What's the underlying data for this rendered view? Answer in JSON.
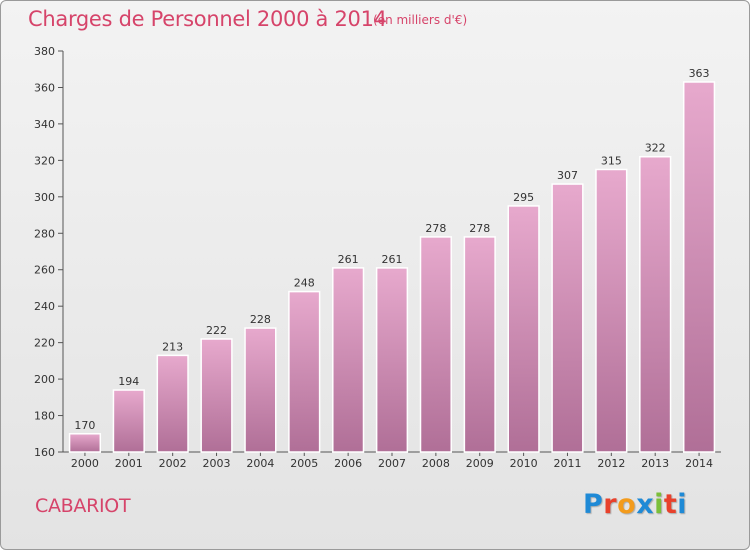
{
  "header": {
    "title": "Charges de Personnel 2000 à 2014",
    "subtitle": "(en milliers d'€)"
  },
  "footer": {
    "place": "CABARIOT",
    "brand": "Proxiti"
  },
  "colors": {
    "accent_text": "#d6446a",
    "bar_top": "#e7a9cd",
    "bar_bottom": "#b06f97",
    "brand_letters": [
      "#1f8ad6",
      "#e8412c",
      "#f39b1c",
      "#1f8ad6",
      "#7bbf3a",
      "#e8412c",
      "#1f8ad6"
    ]
  },
  "chart_data": {
    "type": "bar",
    "categories": [
      "2000",
      "2001",
      "2002",
      "2003",
      "2004",
      "2005",
      "2006",
      "2007",
      "2008",
      "2009",
      "2010",
      "2011",
      "2012",
      "2013",
      "2014"
    ],
    "values": [
      170,
      194,
      213,
      222,
      228,
      248,
      261,
      261,
      278,
      278,
      295,
      307,
      315,
      322,
      363
    ],
    "ylim": [
      160,
      380
    ],
    "yticks": [
      160,
      180,
      200,
      220,
      240,
      260,
      280,
      300,
      320,
      340,
      360,
      380
    ],
    "grid": false,
    "data_labels": true
  }
}
